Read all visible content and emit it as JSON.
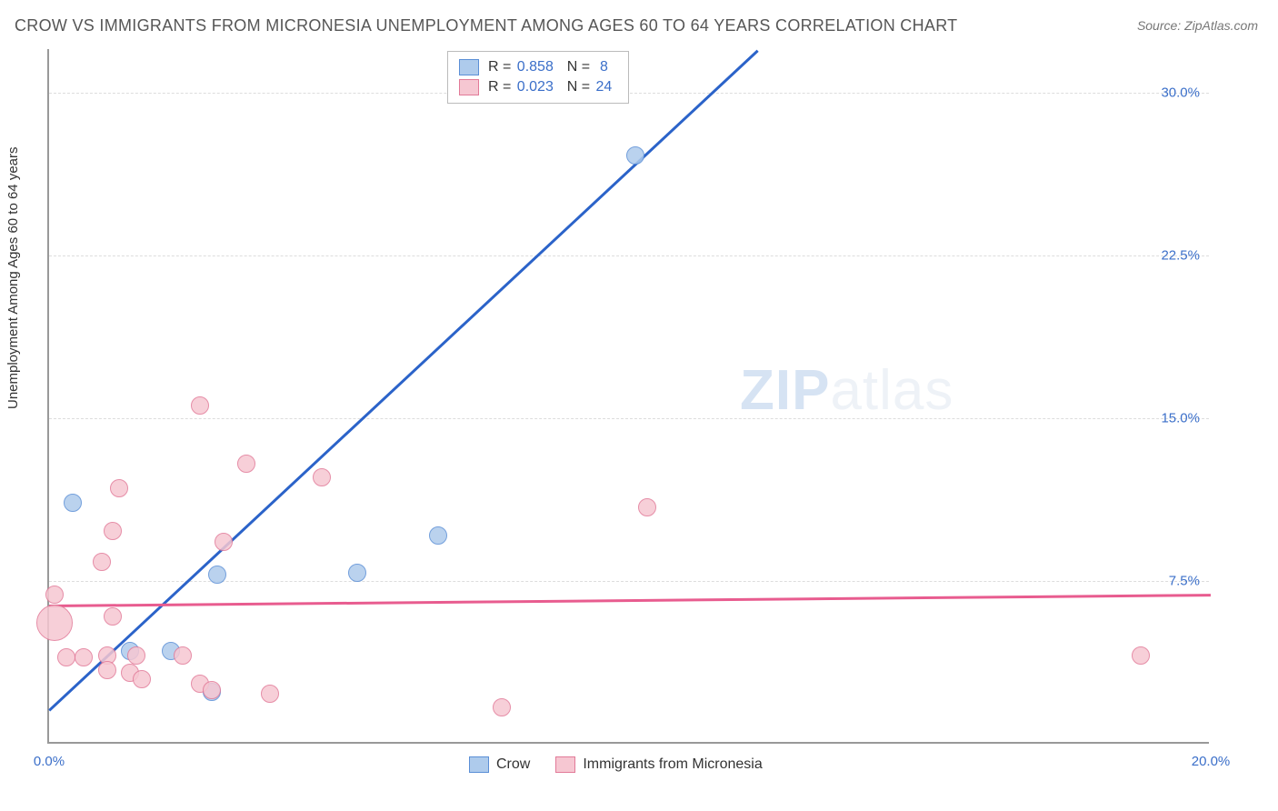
{
  "title": "CROW VS IMMIGRANTS FROM MICRONESIA UNEMPLOYMENT AMONG AGES 60 TO 64 YEARS CORRELATION CHART",
  "source": "Source: ZipAtlas.com",
  "ylabel": "Unemployment Among Ages 60 to 64 years",
  "watermark_zip": "ZIP",
  "watermark_atlas": "atlas",
  "chart": {
    "type": "scatter",
    "xlim": [
      0,
      20
    ],
    "ylim": [
      0,
      32
    ],
    "x_ticks": [
      {
        "v": 0,
        "label": "0.0%"
      },
      {
        "v": 20,
        "label": "20.0%"
      }
    ],
    "y_ticks": [
      {
        "v": 7.5,
        "label": "7.5%"
      },
      {
        "v": 15,
        "label": "15.0%"
      },
      {
        "v": 22.5,
        "label": "22.5%"
      },
      {
        "v": 30,
        "label": "30.0%"
      }
    ],
    "series": [
      {
        "name": "Crow",
        "fill": "#aecbec",
        "stroke": "#5b8fd6",
        "r_marker": 10,
        "points": [
          {
            "x": 0.4,
            "y": 11.0
          },
          {
            "x": 1.4,
            "y": 4.2
          },
          {
            "x": 2.1,
            "y": 4.2
          },
          {
            "x": 2.8,
            "y": 2.3
          },
          {
            "x": 2.9,
            "y": 7.7
          },
          {
            "x": 5.3,
            "y": 7.8
          },
          {
            "x": 6.7,
            "y": 9.5
          },
          {
            "x": 10.1,
            "y": 27.0
          }
        ],
        "trend": {
          "x1": 0,
          "y1": 1.6,
          "x2": 12.2,
          "y2": 32,
          "color": "#2b63c9"
        },
        "R": "0.858",
        "N": "8"
      },
      {
        "name": "Immigrants from Micronesia",
        "fill": "#f6c7d2",
        "stroke": "#e27a98",
        "r_marker": 10,
        "points": [
          {
            "x": 0.1,
            "y": 6.8
          },
          {
            "x": 0.1,
            "y": 5.5,
            "r": 20
          },
          {
            "x": 0.3,
            "y": 3.9
          },
          {
            "x": 0.6,
            "y": 3.9
          },
          {
            "x": 1.0,
            "y": 4.0
          },
          {
            "x": 1.0,
            "y": 3.3
          },
          {
            "x": 0.9,
            "y": 8.3
          },
          {
            "x": 1.1,
            "y": 5.8
          },
          {
            "x": 1.1,
            "y": 9.7
          },
          {
            "x": 1.2,
            "y": 11.7
          },
          {
            "x": 1.4,
            "y": 3.2
          },
          {
            "x": 1.5,
            "y": 4.0
          },
          {
            "x": 1.6,
            "y": 2.9
          },
          {
            "x": 2.3,
            "y": 4.0
          },
          {
            "x": 2.6,
            "y": 2.7
          },
          {
            "x": 2.6,
            "y": 15.5
          },
          {
            "x": 3.0,
            "y": 9.2
          },
          {
            "x": 2.8,
            "y": 2.4
          },
          {
            "x": 3.4,
            "y": 12.8
          },
          {
            "x": 3.8,
            "y": 2.2
          },
          {
            "x": 4.7,
            "y": 12.2
          },
          {
            "x": 7.8,
            "y": 1.6
          },
          {
            "x": 10.3,
            "y": 10.8
          },
          {
            "x": 18.8,
            "y": 4.0
          }
        ],
        "trend": {
          "x1": 0,
          "y1": 6.4,
          "x2": 20,
          "y2": 6.9,
          "color": "#e85c8f"
        },
        "R": "0.023",
        "N": "24"
      }
    ],
    "legend_top_labels": {
      "R": "R =",
      "N": "N ="
    },
    "legend_bottom": [
      "Crow",
      "Immigrants from Micronesia"
    ]
  }
}
